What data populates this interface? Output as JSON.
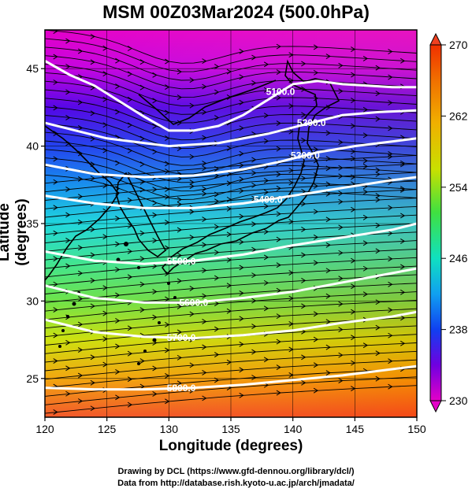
{
  "title": "MSM 00Z03Mar2024 (500.0hPa)",
  "axes": {
    "xlabel": "Longitude (degrees)",
    "ylabel": "Latitude  (degrees)",
    "xlim": [
      120,
      150
    ],
    "ylim": [
      22.5,
      47.5
    ],
    "xticks": [
      "120",
      "125",
      "130",
      "135",
      "140",
      "145",
      "150"
    ],
    "yticks": [
      "25",
      "30",
      "35",
      "40",
      "45"
    ]
  },
  "colorbar": {
    "min": 230,
    "max": 270,
    "labels": [
      "270",
      "262",
      "254",
      "246",
      "238",
      "230"
    ]
  },
  "contours": [
    {
      "label": "5100.0",
      "lat_points": [
        [
          120,
          45.5
        ],
        [
          122,
          44.6
        ],
        [
          124,
          43.9
        ],
        [
          126,
          42.9
        ],
        [
          128,
          41.9
        ],
        [
          130,
          41.0
        ],
        [
          132,
          41.0
        ],
        [
          134,
          41.3
        ],
        [
          136,
          42.0
        ],
        [
          138,
          43.0
        ],
        [
          140,
          44.0
        ],
        [
          142,
          44.2
        ],
        [
          144,
          44.0
        ],
        [
          146,
          43.9
        ],
        [
          148,
          43.8
        ],
        [
          150,
          43.8
        ]
      ]
    },
    {
      "label": "5200.0",
      "lat_points": [
        [
          120,
          41.5
        ],
        [
          125,
          40.5
        ],
        [
          130,
          40.0
        ],
        [
          134,
          40.2
        ],
        [
          138,
          40.8
        ],
        [
          141,
          41.4
        ],
        [
          144,
          42.0
        ],
        [
          147,
          42.2
        ],
        [
          150,
          42.3
        ]
      ]
    },
    {
      "label": "5300.0",
      "lat_points": [
        [
          120,
          38.8
        ],
        [
          124,
          38.2
        ],
        [
          128,
          38.0
        ],
        [
          132,
          38.1
        ],
        [
          136,
          38.5
        ],
        [
          139,
          39.0
        ],
        [
          142,
          39.6
        ],
        [
          145,
          40.0
        ],
        [
          148,
          40.3
        ],
        [
          150,
          40.5
        ]
      ]
    },
    {
      "label": "5400.0",
      "lat_points": [
        [
          120,
          36.8
        ],
        [
          124,
          36.3
        ],
        [
          128,
          36.0
        ],
        [
          132,
          36.0
        ],
        [
          136,
          36.3
        ],
        [
          140,
          36.8
        ],
        [
          144,
          37.3
        ],
        [
          148,
          37.8
        ],
        [
          150,
          38.0
        ]
      ]
    },
    {
      "label": "5500.0",
      "lat_points": [
        [
          120,
          33.2
        ],
        [
          124,
          32.6
        ],
        [
          128,
          32.4
        ],
        [
          132,
          32.6
        ],
        [
          136,
          33.0
        ],
        [
          140,
          33.6
        ],
        [
          144,
          34.1
        ],
        [
          148,
          34.6
        ],
        [
          150,
          35.0
        ]
      ]
    },
    {
      "label": "5600.0",
      "lat_points": [
        [
          120,
          31.0
        ],
        [
          124,
          30.2
        ],
        [
          128,
          29.9
        ],
        [
          132,
          29.9
        ],
        [
          136,
          30.2
        ],
        [
          140,
          30.6
        ],
        [
          144,
          31.2
        ],
        [
          148,
          31.8
        ],
        [
          150,
          32.1
        ]
      ]
    },
    {
      "label": "5700.0",
      "lat_points": [
        [
          120,
          28.8
        ],
        [
          124,
          28.0
        ],
        [
          128,
          27.7
        ],
        [
          132,
          27.6
        ],
        [
          136,
          27.8
        ],
        [
          140,
          28.1
        ],
        [
          144,
          28.6
        ],
        [
          148,
          29.0
        ],
        [
          150,
          29.3
        ]
      ]
    },
    {
      "label": "5800.0",
      "lat_points": [
        [
          120,
          24.4
        ],
        [
          124,
          24.3
        ],
        [
          128,
          24.3
        ],
        [
          132,
          24.4
        ],
        [
          136,
          24.6
        ],
        [
          140,
          24.9
        ],
        [
          144,
          25.2
        ],
        [
          148,
          25.6
        ],
        [
          150,
          25.8
        ]
      ]
    }
  ]
}
